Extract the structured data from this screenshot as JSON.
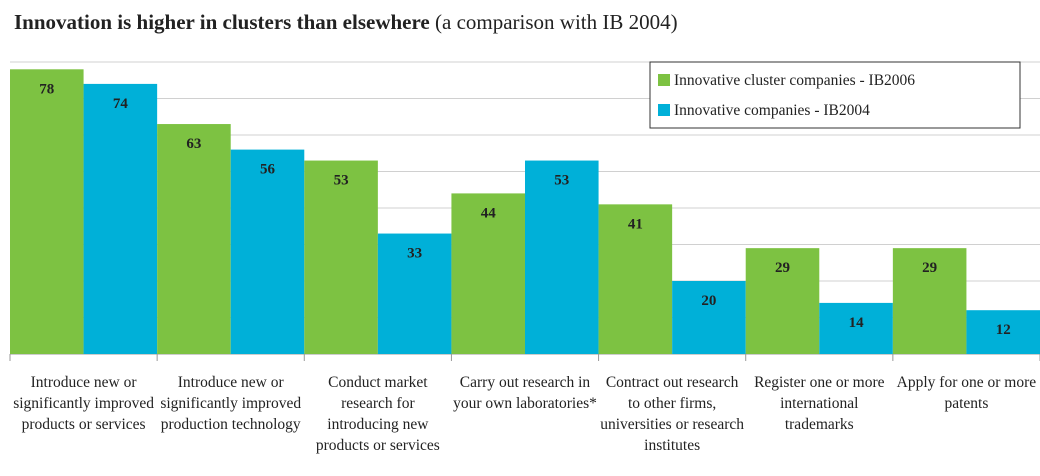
{
  "chart_data": {
    "type": "bar",
    "title": "Innovation is higher in clusters than elsewhere",
    "title_note": "(a comparison with IB 2004)",
    "categories": [
      "Introduce new or significantly improved products or services",
      "Introduce new or significantly improved production technology",
      "Conduct market research for introducing new products or services",
      "Carry out research in your own laboratories*",
      "Contract out research to other firms, universities or research institutes",
      "Register one or more international trademarks",
      "Apply for one or more patents"
    ],
    "series": [
      {
        "name": "Innovative cluster companies - IB2006",
        "color": "#7dc242",
        "values": [
          78,
          63,
          53,
          44,
          41,
          29,
          29
        ]
      },
      {
        "name": "Innovative companies - IB2004",
        "color": "#00b0d8",
        "values": [
          74,
          56,
          33,
          53,
          20,
          14,
          12
        ]
      }
    ],
    "ylim": [
      0,
      80
    ],
    "yticks": [
      0,
      10,
      20,
      30,
      40,
      50,
      60,
      70,
      80
    ],
    "grid": true,
    "legend": "top-right"
  }
}
